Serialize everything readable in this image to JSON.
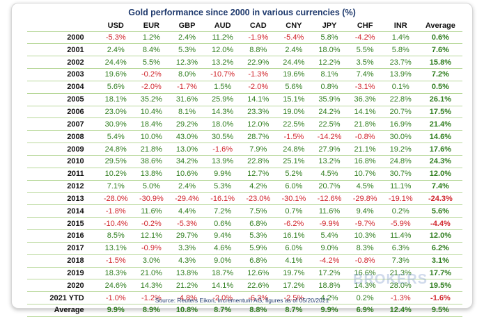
{
  "title": "Gold performance since 2000 in various currencies (%)",
  "source": "Source: Reuters Eikon, Incrementum AG, figures as of 05/20/2021",
  "watermark": "BROKERS",
  "colors": {
    "positive": "#2f7d1e",
    "negative": "#d0242a",
    "title": "#1f3a6d",
    "gridline": "#b8d89a"
  },
  "columns": [
    "",
    "USD",
    "EUR",
    "GBP",
    "AUD",
    "CAD",
    "CNY",
    "JPY",
    "CHF",
    "INR",
    "Average"
  ],
  "rows": [
    [
      "2000",
      "-5.3%",
      "1.2%",
      "2.4%",
      "11.2%",
      "-1.9%",
      "-5.4%",
      "5.8%",
      "-4.2%",
      "1.4%",
      "0.6%"
    ],
    [
      "2001",
      "2.4%",
      "8.4%",
      "5.3%",
      "12.0%",
      "8.8%",
      "2.4%",
      "18.0%",
      "5.5%",
      "5.8%",
      "7.6%"
    ],
    [
      "2002",
      "24.4%",
      "5.5%",
      "12.3%",
      "13.2%",
      "22.9%",
      "24.4%",
      "12.2%",
      "3.5%",
      "23.7%",
      "15.8%"
    ],
    [
      "2003",
      "19.6%",
      "-0.2%",
      "8.0%",
      "-10.7%",
      "-1.3%",
      "19.6%",
      "8.1%",
      "7.4%",
      "13.9%",
      "7.2%"
    ],
    [
      "2004",
      "5.6%",
      "-2.0%",
      "-1.7%",
      "1.5%",
      "-2.0%",
      "5.6%",
      "0.8%",
      "-3.1%",
      "0.1%",
      "0.5%"
    ],
    [
      "2005",
      "18.1%",
      "35.2%",
      "31.6%",
      "25.9%",
      "14.1%",
      "15.1%",
      "35.9%",
      "36.3%",
      "22.8%",
      "26.1%"
    ],
    [
      "2006",
      "23.0%",
      "10.4%",
      "8.1%",
      "14.3%",
      "23.3%",
      "19.0%",
      "24.2%",
      "14.1%",
      "20.7%",
      "17.5%"
    ],
    [
      "2007",
      "30.9%",
      "18.4%",
      "29.2%",
      "18.0%",
      "12.0%",
      "22.5%",
      "22.5%",
      "21.8%",
      "16.9%",
      "21.4%"
    ],
    [
      "2008",
      "5.4%",
      "10.0%",
      "43.0%",
      "30.5%",
      "28.7%",
      "-1.5%",
      "-14.2%",
      "-0.8%",
      "30.0%",
      "14.6%"
    ],
    [
      "2009",
      "24.8%",
      "21.8%",
      "13.0%",
      "-1.6%",
      "7.9%",
      "24.8%",
      "27.9%",
      "21.1%",
      "19.2%",
      "17.6%"
    ],
    [
      "2010",
      "29.5%",
      "38.6%",
      "34.2%",
      "13.9%",
      "22.8%",
      "25.1%",
      "13.2%",
      "16.8%",
      "24.8%",
      "24.3%"
    ],
    [
      "2011",
      "10.2%",
      "13.8%",
      "10.6%",
      "9.9%",
      "12.7%",
      "5.2%",
      "4.5%",
      "10.7%",
      "30.7%",
      "12.0%"
    ],
    [
      "2012",
      "7.1%",
      "5.0%",
      "2.4%",
      "5.3%",
      "4.2%",
      "6.0%",
      "20.7%",
      "4.5%",
      "11.1%",
      "7.4%"
    ],
    [
      "2013",
      "-28.0%",
      "-30.9%",
      "-29.4%",
      "-16.1%",
      "-23.0%",
      "-30.1%",
      "-12.6%",
      "-29.8%",
      "-19.1%",
      "-24.3%"
    ],
    [
      "2014",
      "-1.8%",
      "11.6%",
      "4.4%",
      "7.2%",
      "7.5%",
      "0.7%",
      "11.6%",
      "9.4%",
      "0.2%",
      "5.6%"
    ],
    [
      "2015",
      "-10.4%",
      "-0.2%",
      "-5.3%",
      "0.6%",
      "6.8%",
      "-6.2%",
      "-9.9%",
      "-9.7%",
      "-5.9%",
      "-4.4%"
    ],
    [
      "2016",
      "8.5%",
      "12.1%",
      "29.7%",
      "9.4%",
      "5.3%",
      "16.1%",
      "5.4%",
      "10.3%",
      "11.4%",
      "12.0%"
    ],
    [
      "2017",
      "13.1%",
      "-0.9%",
      "3.3%",
      "4.6%",
      "5.9%",
      "6.0%",
      "9.0%",
      "8.3%",
      "6.3%",
      "6.2%"
    ],
    [
      "2018",
      "-1.5%",
      "3.0%",
      "4.3%",
      "9.0%",
      "6.8%",
      "4.1%",
      "-4.2%",
      "-0.8%",
      "7.3%",
      "3.1%"
    ],
    [
      "2019",
      "18.3%",
      "21.0%",
      "13.8%",
      "18.7%",
      "12.6%",
      "19.7%",
      "17.2%",
      "16.6%",
      "21.3%",
      "17.7%"
    ],
    [
      "2020",
      "24.6%",
      "14.3%",
      "21.2%",
      "14.1%",
      "22.6%",
      "17.2%",
      "18.8%",
      "14.3%",
      "28.0%",
      "19.5%"
    ],
    [
      "2021 YTD",
      "-1.0%",
      "-1.2%",
      "-4.8%",
      "-2.0%",
      "-6.3%",
      "-2.5%",
      "4.2%",
      "0.2%",
      "-1.3%",
      "-1.6%"
    ]
  ],
  "average_row": [
    "Average",
    "9.9%",
    "8.9%",
    "10.8%",
    "8.7%",
    "8.8%",
    "8.7%",
    "9.9%",
    "6.9%",
    "12.4%",
    "9.5%"
  ]
}
